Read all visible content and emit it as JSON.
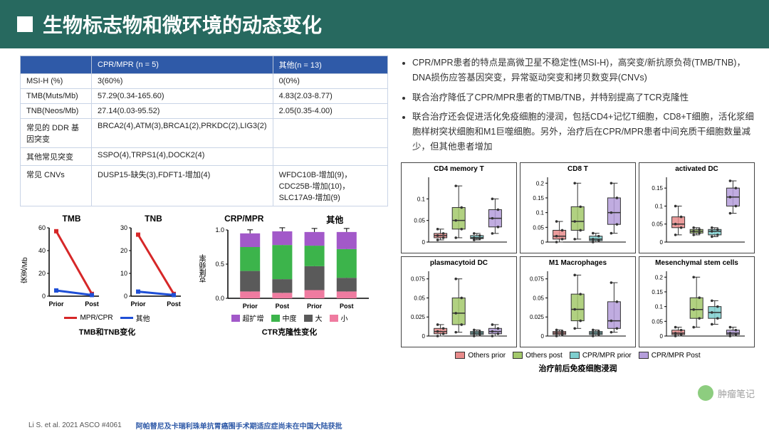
{
  "header": {
    "title": "生物标志物和微环境的动态变化"
  },
  "table": {
    "head": [
      "",
      "CPR/MPR (n = 5)",
      "其他(n = 13)"
    ],
    "rows": [
      [
        "MSI-H (%)",
        "3(60%)",
        "0(0%)"
      ],
      [
        "TMB(Muts/Mb)",
        "57.29(0.34-165.60)",
        "4.83(2.03-8.77)"
      ],
      [
        "TNB(Neos/Mb)",
        "27.14(0.03-95.52)",
        "2.05(0.35-4.00)"
      ],
      [
        "常见的 DDR 基因突变",
        "BRCA2(4),ATM(3),BRCA1(2),PRKDC(2),LIG3(2)",
        ""
      ],
      [
        "其他常见突变",
        "SSPO(4),TRPS1(4),DOCK2(4)",
        ""
      ],
      [
        "常见 CNVs",
        "DUSP15-缺失(3),FDFT1-增加(4)",
        "WFDC10B-增加(9)，CDC25B-增加(10)，SLC17A9-增加(9)"
      ]
    ]
  },
  "bullets": [
    "CPR/MPR患者的特点是高微卫星不稳定性(MSI-H)，高突变/新抗原负荷(TMB/TNB)，DNA损伤应答基因突变，异常驱动突变和拷贝数变异(CNVs)",
    "联合治疗降低了CPR/MPR患者的TMB/TNB，并特别提高了TCR克隆性",
    "联合治疗还会促进活化免疫细胞的浸润，包括CD4+记忆T细胞，CD8+T细胞，活化浆细胞样树突状细胞和M1巨噬细胞。另外，治疗后在CPR/MPR患者中间充质干细胞数量减少，但其他患者增加"
  ],
  "lineCharts": {
    "ylabel": "突变/Mb",
    "panels": [
      {
        "title": "TMB",
        "ymax": 60,
        "ticks": [
          0,
          20,
          40,
          60
        ],
        "red": [
          57,
          2
        ],
        "blue": [
          5,
          1
        ]
      },
      {
        "title": "TNB",
        "ymax": 30,
        "ticks": [
          0,
          10,
          20,
          30
        ],
        "red": [
          27,
          1
        ],
        "blue": [
          2,
          0.5
        ]
      }
    ],
    "xcats": [
      "Prior",
      "Post"
    ],
    "legend": [
      {
        "label": "MPR/CPR",
        "color": "#d62728"
      },
      {
        "label": "其他",
        "color": "#1f4fd6"
      }
    ],
    "caption": "TMB和TNB变化"
  },
  "stacked": {
    "title_left": "CRP/MPR",
    "title_right": "其他",
    "ylabel": "克隆频率",
    "ymax": 1.0,
    "ticks": [
      0,
      0.5,
      1.0
    ],
    "xcats": [
      "Prior",
      "Post",
      "Prior",
      "Post"
    ],
    "colors": {
      "hyper": "#a259c9",
      "mid": "#3cb44b",
      "large": "#5a5a5a",
      "small": "#ef7ba0"
    },
    "bars": [
      {
        "segs": [
          0.1,
          0.3,
          0.35,
          0.2
        ]
      },
      {
        "segs": [
          0.08,
          0.2,
          0.5,
          0.2
        ]
      },
      {
        "segs": [
          0.12,
          0.35,
          0.3,
          0.2
        ]
      },
      {
        "segs": [
          0.1,
          0.2,
          0.42,
          0.25
        ]
      }
    ],
    "legend": [
      {
        "label": "超扩增",
        "key": "hyper"
      },
      {
        "label": "中度",
        "key": "mid"
      },
      {
        "label": "大",
        "key": "large"
      },
      {
        "label": "小",
        "key": "small"
      }
    ],
    "caption": "CTR克隆性变化"
  },
  "boxplots": {
    "xorder": [
      "Others prior",
      "Others post",
      "CPR/MPR prior",
      "CPR/MPR Post"
    ],
    "groupColors": {
      "Others prior": "#e88b8b",
      "Others post": "#a3c96b",
      "CPR/MPR prior": "#7ecfcf",
      "CPR/MPR Post": "#b59edb"
    },
    "legendLabels": {
      "Others prior": "Others prior",
      "Others post": "Others post",
      "CPR/MPR prior": "CPR/MPR prior",
      "CPR/MPR Post": "CPR/MPR Post"
    },
    "panels": [
      {
        "title": "CD4 memory T",
        "ymax": 0.15,
        "ticks": [
          0,
          0.05,
          0.1
        ],
        "boxes": [
          [
            0.005,
            0.01,
            0.015,
            0.02,
            0.03
          ],
          [
            0.01,
            0.03,
            0.05,
            0.08,
            0.13
          ],
          [
            0.005,
            0.008,
            0.01,
            0.015,
            0.02
          ],
          [
            0.02,
            0.035,
            0.055,
            0.075,
            0.1
          ]
        ]
      },
      {
        "title": "CD8 T",
        "ymax": 0.22,
        "ticks": [
          0,
          0.05,
          0.1,
          0.15,
          0.2
        ],
        "boxes": [
          [
            0,
            0.01,
            0.02,
            0.04,
            0.07
          ],
          [
            0.01,
            0.04,
            0.07,
            0.12,
            0.2
          ],
          [
            0,
            0.005,
            0.01,
            0.02,
            0.03
          ],
          [
            0.03,
            0.06,
            0.1,
            0.15,
            0.2
          ]
        ]
      },
      {
        "title": "activated DC",
        "ymax": 0.18,
        "ticks": [
          0,
          0.05,
          0.1,
          0.15
        ],
        "boxes": [
          [
            0.02,
            0.04,
            0.05,
            0.07,
            0.1
          ],
          [
            0.02,
            0.025,
            0.03,
            0.035,
            0.04
          ],
          [
            0.015,
            0.02,
            0.03,
            0.035,
            0.04
          ],
          [
            0.08,
            0.1,
            0.125,
            0.15,
            0.17
          ]
        ]
      },
      {
        "title": "plasmacytoid DC",
        "ymax": 0.085,
        "ticks": [
          0,
          0.025,
          0.05,
          0.075
        ],
        "boxes": [
          [
            0,
            0.003,
            0.006,
            0.01,
            0.015
          ],
          [
            0.005,
            0.015,
            0.03,
            0.05,
            0.075
          ],
          [
            0,
            0.002,
            0.004,
            0.006,
            0.008
          ],
          [
            0,
            0.003,
            0.006,
            0.01,
            0.015
          ]
        ]
      },
      {
        "title": "M1 Macrophages",
        "ymax": 0.085,
        "ticks": [
          0,
          0.025,
          0.05,
          0.075
        ],
        "boxes": [
          [
            0,
            0.002,
            0.004,
            0.006,
            0.008
          ],
          [
            0.01,
            0.02,
            0.035,
            0.055,
            0.08
          ],
          [
            0,
            0.002,
            0.004,
            0.006,
            0.008
          ],
          [
            0.005,
            0.01,
            0.02,
            0.045,
            0.07
          ]
        ]
      },
      {
        "title": "Mesenchymal stem cells",
        "ymax": 0.22,
        "ticks": [
          0,
          0.05,
          0.1,
          0.15,
          0.2
        ],
        "boxes": [
          [
            0,
            0.005,
            0.01,
            0.02,
            0.03
          ],
          [
            0.03,
            0.06,
            0.09,
            0.13,
            0.2
          ],
          [
            0.04,
            0.06,
            0.08,
            0.1,
            0.12
          ],
          [
            0,
            0.005,
            0.01,
            0.02,
            0.03
          ]
        ]
      }
    ],
    "caption": "治疗前后免疫细胞浸润"
  },
  "footer": {
    "cite": "Li S. et al. 2021 ASCO #4061",
    "note": "阿帕替尼及卡瑞利珠单抗胃癌围手术期适应症尚未在中国大陆获批"
  },
  "watermark": "肿瘤笔记"
}
